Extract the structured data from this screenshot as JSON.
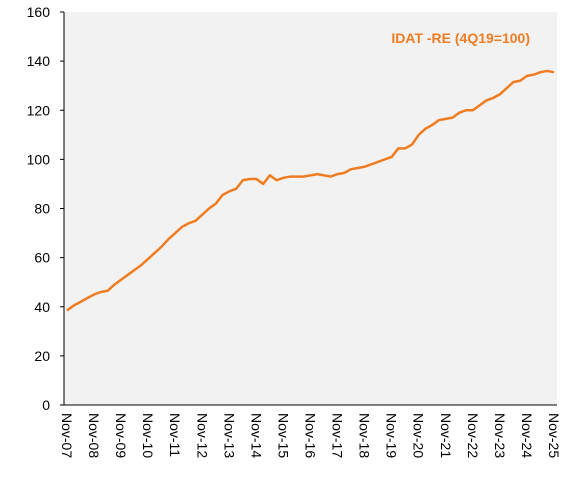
{
  "chart_data": {
    "type": "line",
    "categories": [
      "Nov-07",
      null,
      null,
      null,
      "Nov-08",
      null,
      null,
      null,
      "Nov-09",
      null,
      null,
      null,
      "Nov-10",
      null,
      null,
      null,
      "Nov-11",
      null,
      null,
      null,
      "Nov-12",
      null,
      null,
      null,
      "Nov-13",
      null,
      null,
      null,
      "Nov-14",
      null,
      null,
      null,
      "Nov-15",
      null,
      null,
      null,
      "Nov-16",
      null,
      null,
      null,
      "Nov-17",
      null,
      null,
      null,
      "Nov-18",
      null,
      null,
      null,
      "Nov-19",
      null,
      null,
      null,
      "Nov-20",
      null,
      null,
      null,
      "Nov-21",
      null,
      null,
      null,
      "Nov-22",
      null,
      null,
      null,
      "Nov-23",
      null,
      null,
      null,
      "Nov-24",
      null,
      null,
      null,
      "Nov-25"
    ],
    "series": [
      {
        "name": "IDAT -RE (4Q19=100)",
        "color": "#f07c22",
        "values": [
          38.5,
          40.5,
          42,
          43.5,
          45,
          46,
          46.5,
          49,
          51,
          53,
          55,
          57,
          59.5,
          62,
          64.5,
          67.5,
          70,
          72.5,
          74,
          75,
          77.5,
          80,
          82,
          85.5,
          87,
          88,
          91.5,
          92,
          92,
          90,
          93.5,
          91.5,
          92.5,
          93,
          93,
          93,
          93.5,
          94,
          93.5,
          93,
          94,
          94.5,
          96,
          96.5,
          97,
          98,
          99,
          100,
          101,
          104.5,
          104.5,
          106,
          110,
          112.5,
          114,
          116,
          116.5,
          117,
          119,
          120,
          120,
          122,
          124,
          125,
          126.5,
          129,
          131.5,
          132,
          134,
          134.5,
          135.5,
          136,
          135.5
        ]
      }
    ],
    "ylim": [
      0,
      160
    ],
    "yticks": [
      0,
      20,
      40,
      60,
      80,
      100,
      120,
      140,
      160
    ],
    "grid": false
  }
}
